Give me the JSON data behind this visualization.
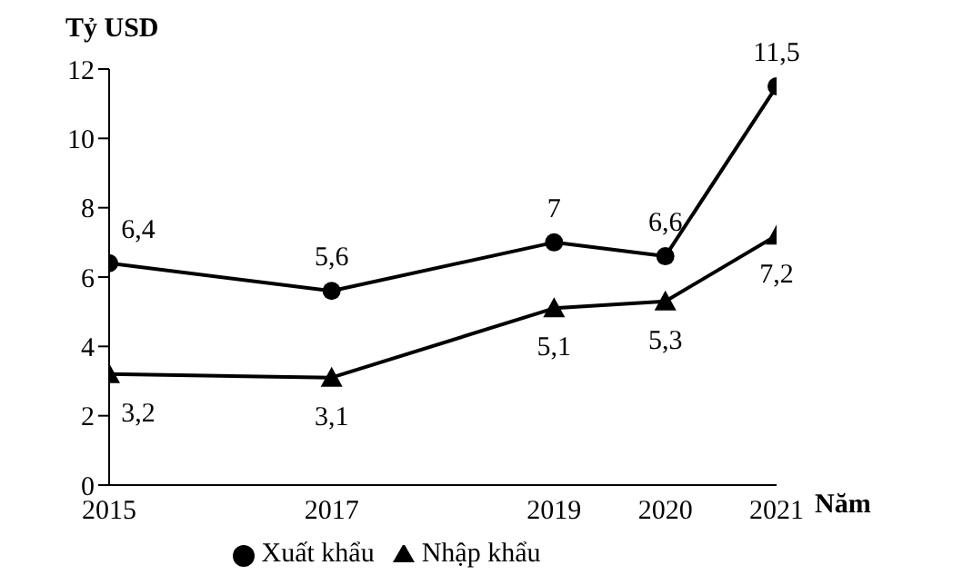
{
  "chart_data": {
    "type": "line",
    "ylabel": "Tỷ USD",
    "xlabel": "Năm",
    "x": [
      2015,
      2017,
      2019,
      2020,
      2021
    ],
    "xlim": [
      2015,
      2021
    ],
    "xticks": [
      2015,
      2017,
      2019,
      2020,
      2021
    ],
    "ylim": [
      0,
      12
    ],
    "yticks": [
      0,
      2,
      4,
      6,
      8,
      10,
      12
    ],
    "grid": false,
    "legend": "bottom",
    "line_style": "solid",
    "series": [
      {
        "name": "Xuất khẩu",
        "color": "#000000",
        "marker": "circle",
        "values": [
          6.4,
          5.6,
          7,
          6.6,
          11.5
        ],
        "value_labels": [
          "6,4",
          "5,6",
          "7",
          "6,6",
          "11,5"
        ]
      },
      {
        "name": "Nhập khẩu",
        "color": "#000000",
        "marker": "triangle",
        "values": [
          3.2,
          3.1,
          5.1,
          5.3,
          7.2
        ],
        "value_labels": [
          "3,2",
          "3,1",
          "5,1",
          "5,3",
          "7,2"
        ]
      }
    ]
  }
}
